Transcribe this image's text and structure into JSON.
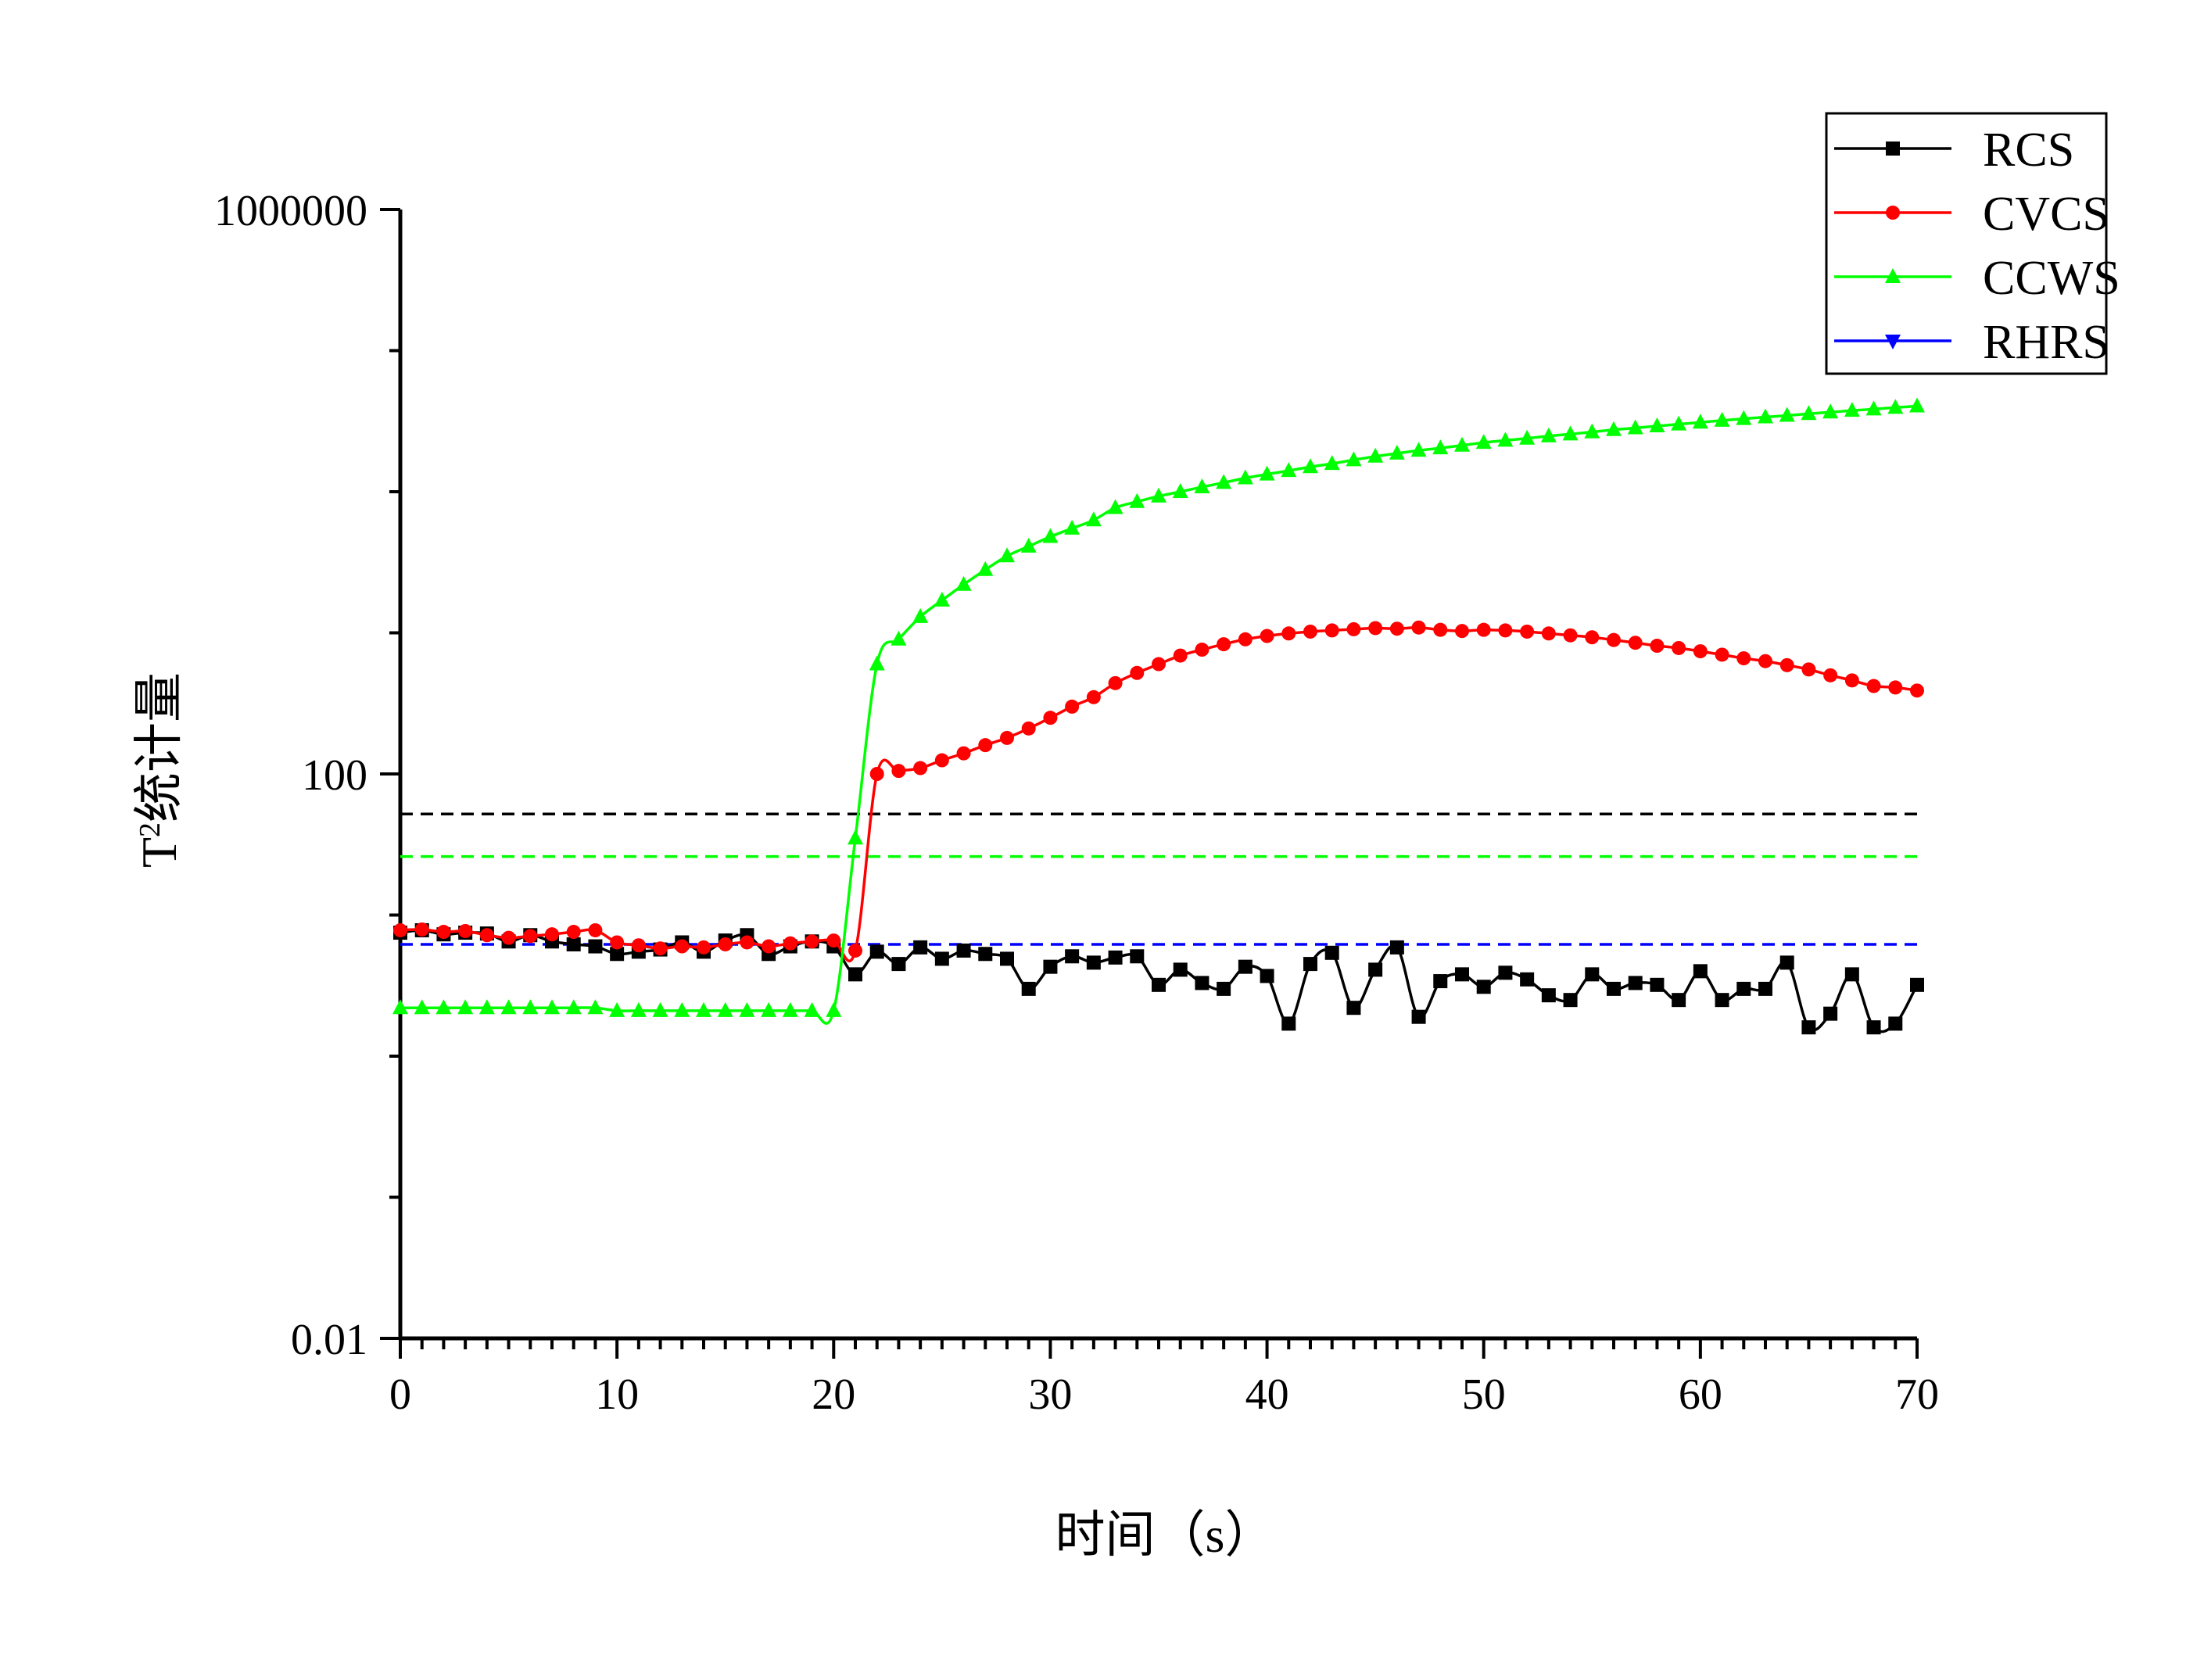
{
  "chart_data": {
    "type": "line",
    "title": "",
    "xlabel": "时间（s）",
    "ylabel": "T²统计量",
    "ylabel_main": "T",
    "ylabel_sup": "2",
    "ylabel_rest": "统计量",
    "y_scale": "log",
    "xlim": [
      0,
      70
    ],
    "ylim": [
      0.01,
      1000000
    ],
    "x_ticks": [
      0,
      10,
      20,
      30,
      40,
      50,
      60,
      70
    ],
    "x_tick_labels": [
      "0",
      "10",
      "20",
      "30",
      "40",
      "50",
      "60",
      "70"
    ],
    "y_ticks": [
      0.01,
      100,
      1000000
    ],
    "y_tick_labels": [
      "0.01",
      "100",
      "1000000"
    ],
    "grid": false,
    "legend": "top-right",
    "series": [
      {
        "name": "RCS",
        "color": "#000000",
        "marker": "square",
        "x": [
          0,
          1,
          2,
          3,
          4,
          5,
          6,
          7,
          8,
          9,
          10,
          11,
          12,
          13,
          14,
          15,
          16,
          17,
          18,
          19,
          20,
          21,
          22,
          23,
          24,
          25,
          26,
          27,
          28,
          29,
          30,
          31,
          32,
          33,
          34,
          35,
          36,
          37,
          38,
          39,
          40,
          41,
          42,
          43,
          44,
          45,
          46,
          47,
          48,
          49,
          50,
          51,
          52,
          53,
          54,
          55,
          56,
          57,
          58,
          59,
          60,
          61,
          62,
          63,
          64,
          65,
          66,
          67,
          68,
          69,
          70
        ],
        "y": [
          7.5,
          7.8,
          7.3,
          7.5,
          7.4,
          6.5,
          7.2,
          6.5,
          6.2,
          6.0,
          5.3,
          5.5,
          5.7,
          6.4,
          5.5,
          6.6,
          7.2,
          5.3,
          6.0,
          6.5,
          6.0,
          3.8,
          5.5,
          4.5,
          5.9,
          4.9,
          5.6,
          5.3,
          4.9,
          3.0,
          4.3,
          5.1,
          4.6,
          5.0,
          5.1,
          3.2,
          4.1,
          3.3,
          3.0,
          4.3,
          3.7,
          1.7,
          4.5,
          5.4,
          2.2,
          4.1,
          5.9,
          1.9,
          3.4,
          3.8,
          3.1,
          3.9,
          3.5,
          2.7,
          2.5,
          3.8,
          3.0,
          3.3,
          3.2,
          2.5,
          4.0,
          2.5,
          3.0,
          3.0,
          4.6,
          1.6,
          2.0,
          3.8,
          1.6,
          1.7,
          3.2
        ]
      },
      {
        "name": "CVCS",
        "color": "#ff0000",
        "marker": "circle",
        "x": [
          0,
          1,
          2,
          3,
          4,
          5,
          6,
          7,
          8,
          9,
          10,
          11,
          12,
          13,
          14,
          15,
          16,
          17,
          18,
          19,
          20,
          21,
          22,
          23,
          24,
          25,
          26,
          27,
          28,
          29,
          30,
          31,
          32,
          33,
          34,
          35,
          36,
          37,
          38,
          39,
          40,
          41,
          42,
          43,
          44,
          45,
          46,
          47,
          48,
          49,
          50,
          51,
          52,
          53,
          54,
          55,
          56,
          57,
          58,
          59,
          60,
          61,
          62,
          63,
          64,
          65,
          66,
          67,
          68,
          69,
          70
        ],
        "y": [
          7.8,
          7.9,
          7.6,
          7.7,
          7.2,
          6.9,
          7.1,
          7.3,
          7.6,
          7.8,
          6.4,
          6.1,
          5.8,
          6.0,
          5.9,
          6.2,
          6.4,
          6.0,
          6.3,
          6.5,
          6.6,
          5.6,
          100,
          105,
          110,
          125,
          140,
          160,
          180,
          210,
          250,
          300,
          350,
          440,
          520,
          600,
          690,
          760,
          830,
          900,
          950,
          990,
          1020,
          1040,
          1060,
          1080,
          1070,
          1090,
          1050,
          1030,
          1050,
          1040,
          1020,
          990,
          960,
          930,
          890,
          850,
          810,
          780,
          740,
          700,
          660,
          630,
          590,
          550,
          500,
          460,
          420,
          410,
          390
        ]
      },
      {
        "name": "CCWS",
        "color": "#00ff00",
        "marker": "triangle-up",
        "x": [
          0,
          1,
          2,
          3,
          4,
          5,
          6,
          7,
          8,
          9,
          10,
          11,
          12,
          13,
          14,
          15,
          16,
          17,
          18,
          19,
          20,
          21,
          22,
          23,
          24,
          25,
          26,
          27,
          28,
          29,
          30,
          31,
          32,
          33,
          34,
          35,
          36,
          37,
          38,
          39,
          40,
          41,
          42,
          43,
          44,
          45,
          46,
          47,
          48,
          49,
          50,
          51,
          52,
          53,
          54,
          55,
          56,
          57,
          58,
          59,
          60,
          61,
          62,
          63,
          64,
          65,
          66,
          67,
          68,
          69,
          70
        ],
        "y": [
          2.2,
          2.2,
          2.2,
          2.2,
          2.2,
          2.2,
          2.2,
          2.2,
          2.2,
          2.2,
          2.1,
          2.1,
          2.1,
          2.1,
          2.1,
          2.1,
          2.1,
          2.1,
          2.1,
          2.1,
          2.1,
          35,
          600,
          900,
          1300,
          1700,
          2200,
          2800,
          3500,
          4100,
          4800,
          5500,
          6300,
          7700,
          8500,
          9300,
          10000,
          10800,
          11600,
          12500,
          13300,
          14100,
          15000,
          15800,
          16800,
          17800,
          18700,
          19600,
          20400,
          21300,
          22300,
          23100,
          23900,
          24800,
          25600,
          26500,
          27500,
          28300,
          29200,
          30100,
          31000,
          32000,
          32900,
          33800,
          34700,
          35700,
          36600,
          37600,
          38500,
          39500,
          40400
        ]
      },
      {
        "name": "RHRS",
        "color": "#0000ff",
        "marker": "triangle-down",
        "x": [],
        "y": []
      }
    ],
    "thresholds": [
      {
        "color": "#000000",
        "y": 52
      },
      {
        "color": "#00ff00",
        "y": 26
      },
      {
        "color": "#0000ff",
        "y": 6.2
      }
    ]
  }
}
